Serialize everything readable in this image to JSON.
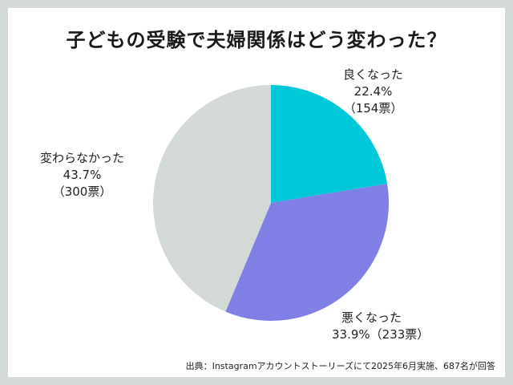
{
  "title": "子どもの受験で夫婦関係はどう変わった？",
  "source": "出典：Instagramアカウントストーリーズにて2025年6月実施、687名が回答",
  "colors": {
    "background": "#d3d9d7",
    "card": "#ffffff"
  },
  "chart_data": {
    "type": "pie",
    "start": "12 o'clock, clockwise",
    "total_votes": 687,
    "slices": [
      {
        "label": "良くなった",
        "percent_text": "22.4%",
        "votes_text": "（154票）",
        "value": 22.4,
        "votes": 154,
        "color": "#00c8d8"
      },
      {
        "label": "悪くなった",
        "percent_text": "33.9%",
        "votes_text": "（233票）",
        "value": 33.9,
        "votes": 233,
        "color": "#7f7fe6"
      },
      {
        "label": "変わらなかった",
        "percent_text": "43.7%",
        "votes_text": "（300票）",
        "value": 43.7,
        "votes": 300,
        "color": "#d3d9d7"
      }
    ]
  }
}
